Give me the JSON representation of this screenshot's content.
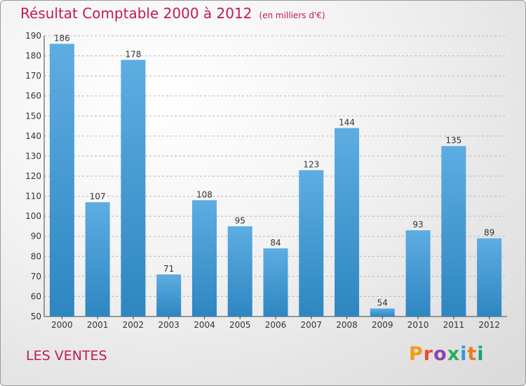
{
  "title": "Résultat Comptable 2000 à 2012",
  "subtitle": "(en milliers d'€)",
  "footer_label": "LES VENTES",
  "logo": {
    "text": "Proxiti",
    "colors": [
      "#f39c12",
      "#e74c3c",
      "#8e44ad",
      "#27ae60",
      "#3498db",
      "#e67e22",
      "#16a085"
    ]
  },
  "colors": {
    "accent": "#c2185b",
    "bar_top": "#5dade2",
    "bar_bottom": "#2e86c1"
  },
  "chart_data": {
    "type": "bar",
    "categories": [
      "2000",
      "2001",
      "2002",
      "2003",
      "2004",
      "2005",
      "2006",
      "2007",
      "2008",
      "2009",
      "2010",
      "2011",
      "2012"
    ],
    "values": [
      186,
      107,
      178,
      71,
      108,
      95,
      84,
      123,
      144,
      54,
      93,
      135,
      89
    ],
    "ylim": [
      50,
      190
    ],
    "yticks": [
      50,
      60,
      70,
      80,
      90,
      100,
      110,
      120,
      130,
      140,
      150,
      160,
      170,
      180,
      190
    ],
    "grid": true
  }
}
